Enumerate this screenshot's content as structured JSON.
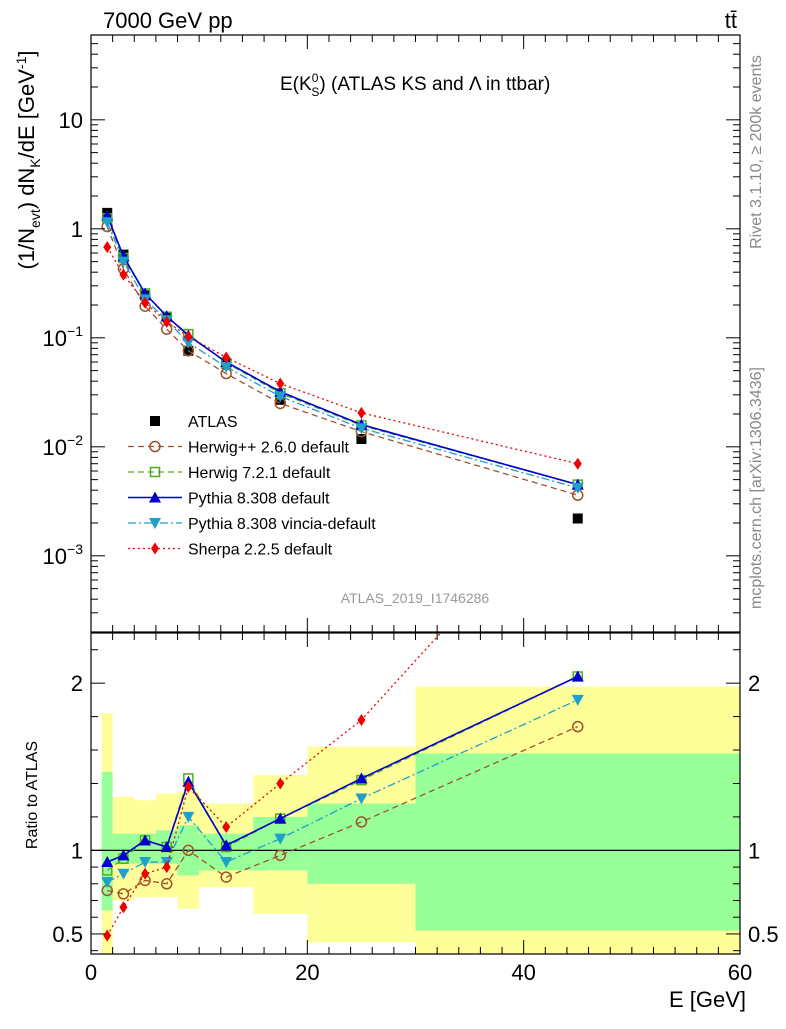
{
  "header": {
    "energy_label": "7000 GeV pp",
    "process_label": "tt̄"
  },
  "side_labels": {
    "rivet": "Rivet 3.1.10, ≥ 200k events",
    "mcplots": "mcplots.cern.ch [arXiv:1306.3436]"
  },
  "analysis_id": "ATLAS_2019_I1746286",
  "chart_data": [
    {
      "type": "scatter",
      "panel": "main",
      "title_main": "E(K",
      "title_sup": "0",
      "title_sub": "S",
      "title_rest": ") (ATLAS KS and Λ in ttbar)",
      "ylabel": "(1/N_evt) dN_K/dE [GeV^-1]",
      "ylabel_parts": {
        "a": "(1/N",
        "a_sub": "evt",
        "b": ") dN",
        "b_sub": "K",
        "c": "/dE [GeV",
        "c_sup": "-1",
        "d": "]"
      },
      "yscale": "log",
      "xlim": [
        0,
        60
      ],
      "ylim": [
        0.0002,
        60
      ],
      "y_tick_labels": [
        {
          "value": 10,
          "base": "10",
          "exp": ""
        },
        {
          "value": 1,
          "base": "1",
          "exp": ""
        },
        {
          "value": 0.1,
          "base": "10",
          "exp": "−1"
        },
        {
          "value": 0.01,
          "base": "10",
          "exp": "−2"
        },
        {
          "value": 0.001,
          "base": "10",
          "exp": "−3"
        }
      ],
      "legend_position": "lower-left",
      "x": [
        1.5,
        3,
        5,
        7,
        9,
        12.5,
        17.5,
        25,
        45
      ],
      "series": [
        {
          "name": "ATLAS",
          "color": "#000000",
          "marker": "square-filled",
          "line": "none",
          "values": [
            1.4,
            0.58,
            0.245,
            0.155,
            0.076,
            0.058,
            0.027,
            0.0118,
            0.0022
          ]
        },
        {
          "name": "Herwig++ 2.6.0 default",
          "color": "#a0522d",
          "marker": "circle-open",
          "line": "dashed",
          "values": [
            1.05,
            0.43,
            0.195,
            0.12,
            0.076,
            0.047,
            0.025,
            0.0138,
            0.0036
          ]
        },
        {
          "name": "Herwig 7.2.1 default",
          "color": "#4caf1f",
          "marker": "square-open",
          "line": "dashed",
          "values": [
            1.25,
            0.54,
            0.255,
            0.156,
            0.108,
            0.059,
            0.031,
            0.0157,
            0.0045
          ]
        },
        {
          "name": "Pythia 8.308 default",
          "color": "#0000cc",
          "marker": "triangle-up",
          "line": "solid",
          "values": [
            1.32,
            0.56,
            0.255,
            0.158,
            0.105,
            0.06,
            0.032,
            0.016,
            0.0045
          ]
        },
        {
          "name": "Pythia 8.308 vincia-default",
          "color": "#1e9fcc",
          "marker": "triangle-down",
          "line": "dashdot",
          "values": [
            1.15,
            0.5,
            0.225,
            0.145,
            0.09,
            0.054,
            0.029,
            0.0148,
            0.0042
          ]
        },
        {
          "name": "Sherpa 2.2.5 default",
          "color": "#ee0000",
          "marker": "diamond",
          "line": "dotted",
          "values": [
            0.68,
            0.38,
            0.21,
            0.14,
            0.103,
            0.066,
            0.038,
            0.0205,
            0.007
          ]
        }
      ]
    },
    {
      "type": "line",
      "panel": "ratio",
      "ylabel": "Ratio to ATLAS",
      "xlabel": "E [GeV]",
      "xlim": [
        0,
        60
      ],
      "ylim": [
        0.38,
        2.3
      ],
      "reference_line": 1,
      "x_ticks": [
        0,
        20,
        40,
        60
      ],
      "y_ticks": [
        0.5,
        1,
        2
      ],
      "bins": [
        [
          1,
          2
        ],
        [
          2,
          4
        ],
        [
          4,
          6
        ],
        [
          6,
          8
        ],
        [
          8,
          10
        ],
        [
          10,
          15
        ],
        [
          15,
          20
        ],
        [
          20,
          30
        ],
        [
          30,
          60
        ]
      ],
      "band_inner": [
        [
          0.64,
          1.47
        ],
        [
          0.92,
          1.1
        ],
        [
          0.92,
          1.1
        ],
        [
          0.92,
          1.12
        ],
        [
          0.85,
          1.15
        ],
        [
          0.88,
          1.1
        ],
        [
          0.88,
          1.2
        ],
        [
          0.8,
          1.28
        ],
        [
          0.52,
          1.58
        ]
      ],
      "band_outer": [
        [
          0.38,
          1.82
        ],
        [
          0.7,
          1.32
        ],
        [
          0.72,
          1.3
        ],
        [
          0.72,
          1.34
        ],
        [
          0.65,
          1.35
        ],
        [
          0.78,
          1.28
        ],
        [
          0.62,
          1.45
        ],
        [
          0.45,
          1.62
        ],
        [
          0.38,
          1.98
        ]
      ],
      "band_colors": {
        "inner": "#99ff99",
        "outer": "#ffff99"
      },
      "x": [
        1.5,
        3,
        5,
        7,
        9,
        12.5,
        17.5,
        25,
        45
      ],
      "series": [
        {
          "name": "Herwig++ 2.6.0 default",
          "color": "#a0522d",
          "marker": "circle-open",
          "line": "dashed",
          "values": [
            0.76,
            0.74,
            0.82,
            0.8,
            1.0,
            0.84,
            0.97,
            1.17,
            1.74
          ]
        },
        {
          "name": "Herwig 7.2.1 default",
          "color": "#4caf1f",
          "marker": "square-open",
          "line": "dashed",
          "values": [
            0.88,
            0.95,
            1.06,
            1.02,
            1.43,
            1.02,
            1.19,
            1.42,
            2.04
          ]
        },
        {
          "name": "Pythia 8.308 default",
          "color": "#0000cc",
          "marker": "triangle-up",
          "line": "solid",
          "values": [
            0.93,
            0.97,
            1.06,
            1.02,
            1.41,
            1.03,
            1.19,
            1.43,
            2.04
          ]
        },
        {
          "name": "Pythia 8.308 vincia-default",
          "color": "#1e9fcc",
          "marker": "triangle-down",
          "line": "dashdot",
          "values": [
            0.81,
            0.86,
            0.93,
            0.93,
            1.2,
            0.93,
            1.07,
            1.31,
            1.9
          ]
        },
        {
          "name": "Sherpa 2.2.5 default",
          "color": "#ee0000",
          "marker": "diamond",
          "line": "dotted",
          "values": [
            0.49,
            0.66,
            0.86,
            0.9,
            1.38,
            1.14,
            1.4,
            1.78,
            3.2
          ]
        }
      ]
    }
  ]
}
